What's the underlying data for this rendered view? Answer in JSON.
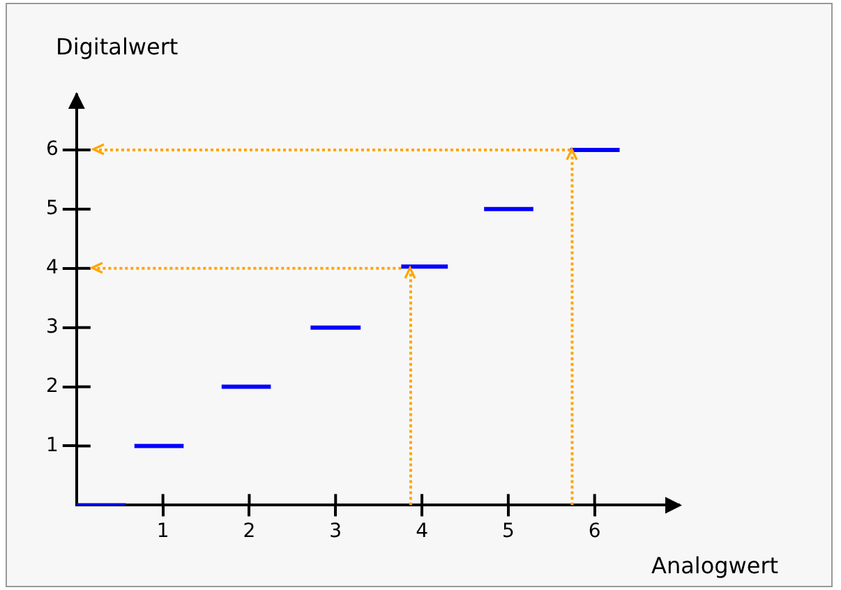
{
  "chart_data": {
    "type": "line",
    "xlabel": "Analogwert",
    "ylabel": "Digitalwert",
    "xlim": [
      0,
      6.98
    ],
    "ylim": [
      0,
      6.93
    ],
    "xticks": [
      1,
      2,
      3,
      4,
      5,
      6
    ],
    "yticks": [
      1,
      2,
      3,
      4,
      5,
      6
    ],
    "grid": false,
    "legend": false,
    "series": [
      {
        "color": "#0000ff",
        "line_style": "solid",
        "x": [
          0,
          0.57,
          0.62,
          0.67,
          1.24,
          1.46,
          1.68,
          2.25,
          2.48,
          2.71,
          3.29,
          3.52,
          3.76,
          4.3,
          4.51,
          4.72,
          5.29,
          5.5,
          5.72,
          6.29
        ],
        "values": [
          0,
          0,
          null,
          1,
          1,
          null,
          2,
          2,
          null,
          3,
          3,
          null,
          4.03,
          4.03,
          null,
          5,
          5,
          null,
          6,
          6
        ]
      },
      {
        "color": "#ffa500",
        "line_style": "dotted",
        "x": [
          3.87,
          3.87
        ],
        "values": [
          0,
          3.95
        ]
      },
      {
        "color": "#ffa500",
        "line_style": "dotted",
        "x": [
          3.76,
          0.22
        ],
        "values": [
          4,
          4
        ]
      },
      {
        "color": "#ffa500",
        "line_style": "dotted",
        "x": [
          5.74,
          5.74
        ],
        "values": [
          0,
          5.95
        ]
      },
      {
        "color": "#ffa500",
        "line_style": "dotted",
        "x": [
          5.72,
          0.24
        ],
        "values": [
          6,
          6
        ]
      }
    ]
  }
}
